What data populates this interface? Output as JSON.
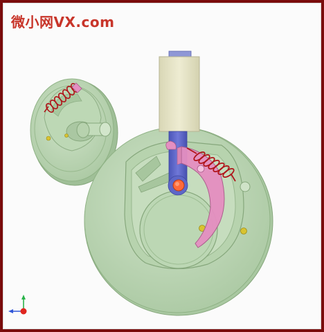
{
  "watermark": {
    "text": "微小网VX.com"
  },
  "colors": {
    "frame": "#7a0c0c",
    "background": "#fbfbfb",
    "disk": "#b9d6b2",
    "disk_edge": "#8fb285",
    "slider": "#e3e1c2",
    "rod": "#5a64c6",
    "pawl": "#e58fc1",
    "spring": "#b0141a",
    "pin": "#d8c330",
    "roller": "#ff6a3a"
  },
  "icons": {
    "axis_triad": "xyz-axis-icon"
  }
}
